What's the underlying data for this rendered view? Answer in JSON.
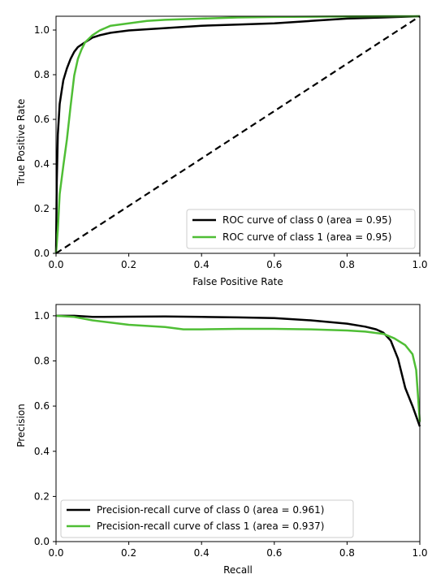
{
  "chart_data": [
    {
      "type": "line",
      "xlabel": "False Positive Rate",
      "ylabel": "True Positive Rate",
      "xlim": [
        0,
        1
      ],
      "ylim": [
        0,
        1
      ],
      "xticks": [
        "0.0",
        "0.2",
        "0.4",
        "0.6",
        "0.8",
        "1.0"
      ],
      "yticks": [
        "0.0",
        "0.2",
        "0.4",
        "0.6",
        "0.8",
        "1.0"
      ],
      "grid": false,
      "legend_position": "lower-right",
      "series": [
        {
          "name": "ROC curve of class 0 (area = 0.95)",
          "color": "#000000",
          "x": [
            0,
            0.002,
            0.005,
            0.01,
            0.015,
            0.02,
            0.03,
            0.04,
            0.05,
            0.06,
            0.08,
            0.1,
            0.12,
            0.15,
            0.2,
            0.3,
            0.4,
            0.5,
            0.6,
            0.7,
            0.8,
            0.9,
            1.0
          ],
          "y": [
            0,
            0.3,
            0.5,
            0.63,
            0.68,
            0.73,
            0.78,
            0.82,
            0.85,
            0.87,
            0.89,
            0.91,
            0.92,
            0.93,
            0.94,
            0.95,
            0.96,
            0.965,
            0.97,
            0.98,
            0.99,
            0.995,
            1.0
          ]
        },
        {
          "name": "ROC curve of class 1 (area = 0.95)",
          "color": "#4fbe35",
          "x": [
            0,
            0.005,
            0.01,
            0.02,
            0.03,
            0.04,
            0.05,
            0.06,
            0.07,
            0.08,
            0.1,
            0.12,
            0.15,
            0.2,
            0.25,
            0.3,
            0.4,
            0.5,
            0.6,
            0.7,
            0.8,
            0.9,
            1.0
          ],
          "y": [
            0,
            0.1,
            0.25,
            0.37,
            0.48,
            0.62,
            0.75,
            0.82,
            0.86,
            0.89,
            0.92,
            0.94,
            0.96,
            0.97,
            0.98,
            0.985,
            0.99,
            0.995,
            0.997,
            0.998,
            0.999,
            1.0,
            1.0
          ]
        },
        {
          "name": "",
          "color": "#000000",
          "dashed": true,
          "x": [
            0,
            1
          ],
          "y": [
            0,
            1
          ]
        }
      ]
    },
    {
      "type": "line",
      "xlabel": "Recall",
      "ylabel": "Precision",
      "xlim": [
        0,
        1
      ],
      "ylim": [
        0,
        1.05
      ],
      "xticks": [
        "0.0",
        "0.2",
        "0.4",
        "0.6",
        "0.8",
        "1.0"
      ],
      "yticks": [
        "0.0",
        "0.2",
        "0.4",
        "0.6",
        "0.8",
        "1.0"
      ],
      "grid": false,
      "legend_position": "lower-left",
      "series": [
        {
          "name": "Precision-recall curve of class 0 (area = 0.961)",
          "color": "#000000",
          "x": [
            0,
            0.05,
            0.1,
            0.2,
            0.3,
            0.4,
            0.5,
            0.6,
            0.7,
            0.8,
            0.85,
            0.88,
            0.9,
            0.92,
            0.94,
            0.96,
            0.98,
            1.0
          ],
          "y": [
            1.0,
            1.0,
            0.995,
            0.996,
            0.997,
            0.995,
            0.993,
            0.99,
            0.98,
            0.965,
            0.952,
            0.94,
            0.925,
            0.89,
            0.81,
            0.68,
            0.6,
            0.51
          ]
        },
        {
          "name": "Precision-recall curve of class 1 (area = 0.937)",
          "color": "#4fbe35",
          "x": [
            0,
            0.05,
            0.1,
            0.15,
            0.2,
            0.3,
            0.35,
            0.4,
            0.5,
            0.6,
            0.7,
            0.8,
            0.85,
            0.9,
            0.93,
            0.96,
            0.98,
            0.99,
            1.0
          ],
          "y": [
            1.0,
            0.995,
            0.98,
            0.97,
            0.96,
            0.95,
            0.94,
            0.94,
            0.942,
            0.942,
            0.94,
            0.935,
            0.93,
            0.92,
            0.9,
            0.87,
            0.83,
            0.76,
            0.53
          ]
        }
      ]
    }
  ]
}
